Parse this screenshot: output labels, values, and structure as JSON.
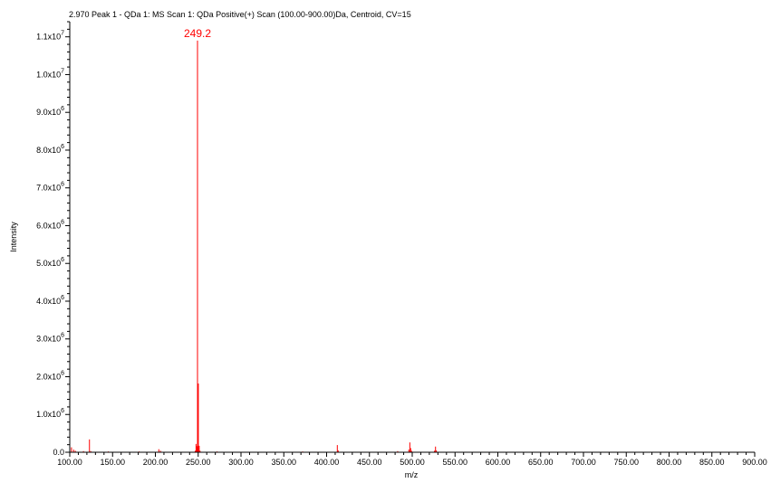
{
  "chart_data": {
    "type": "bar",
    "title": "2.970 Peak 1 - QDa 1: MS Scan 1: QDa Positive(+) Scan (100.00-900.00)Da, Centroid, CV=15",
    "xlabel": "m/z",
    "ylabel": "Intensity",
    "xlim": [
      100,
      900
    ],
    "ylim": [
      0,
      11400000
    ],
    "x_ticks": [
      "100.00",
      "150.00",
      "200.00",
      "250.00",
      "300.00",
      "350.00",
      "400.00",
      "450.00",
      "500.00",
      "550.00",
      "600.00",
      "650.00",
      "700.00",
      "750.00",
      "800.00",
      "850.00",
      "900.00"
    ],
    "y_ticks": [
      {
        "value": 0,
        "mantissa": "0.0",
        "exp": ""
      },
      {
        "value": 1000000,
        "mantissa": "1.0x10",
        "exp": "6"
      },
      {
        "value": 2000000,
        "mantissa": "2.0x10",
        "exp": "6"
      },
      {
        "value": 3000000,
        "mantissa": "3.0x10",
        "exp": "6"
      },
      {
        "value": 4000000,
        "mantissa": "4.0x10",
        "exp": "6"
      },
      {
        "value": 5000000,
        "mantissa": "5.0x10",
        "exp": "6"
      },
      {
        "value": 6000000,
        "mantissa": "6.0x10",
        "exp": "6"
      },
      {
        "value": 7000000,
        "mantissa": "7.0x10",
        "exp": "6"
      },
      {
        "value": 8000000,
        "mantissa": "8.0x10",
        "exp": "6"
      },
      {
        "value": 9000000,
        "mantissa": "9.0x10",
        "exp": "6"
      },
      {
        "value": 10000000,
        "mantissa": "1.0x10",
        "exp": "7"
      },
      {
        "value": 11000000,
        "mantissa": "1.1x10",
        "exp": "7"
      }
    ],
    "peaks": [
      {
        "mz": 102.0,
        "intensity": 130000
      },
      {
        "mz": 104.5,
        "intensity": 70000
      },
      {
        "mz": 106.5,
        "intensity": 40000
      },
      {
        "mz": 116.0,
        "intensity": 30000
      },
      {
        "mz": 123.0,
        "intensity": 340000
      },
      {
        "mz": 124.5,
        "intensity": 30000
      },
      {
        "mz": 145.0,
        "intensity": 20000
      },
      {
        "mz": 181.0,
        "intensity": 20000
      },
      {
        "mz": 204.0,
        "intensity": 80000
      },
      {
        "mz": 206.0,
        "intensity": 40000
      },
      {
        "mz": 246.5,
        "intensity": 40000
      },
      {
        "mz": 247.5,
        "intensity": 220000
      },
      {
        "mz": 248.3,
        "intensity": 160000
      },
      {
        "mz": 249.2,
        "intensity": 10900000
      },
      {
        "mz": 250.2,
        "intensity": 1820000
      },
      {
        "mz": 251.2,
        "intensity": 170000
      },
      {
        "mz": 252.2,
        "intensity": 40000
      },
      {
        "mz": 272.0,
        "intensity": 20000
      },
      {
        "mz": 372.0,
        "intensity": 20000
      },
      {
        "mz": 412.5,
        "intensity": 190000
      },
      {
        "mz": 413.5,
        "intensity": 50000
      },
      {
        "mz": 483.0,
        "intensity": 30000
      },
      {
        "mz": 496.0,
        "intensity": 70000
      },
      {
        "mz": 497.2,
        "intensity": 260000
      },
      {
        "mz": 498.2,
        "intensity": 110000
      },
      {
        "mz": 499.2,
        "intensity": 40000
      },
      {
        "mz": 526.0,
        "intensity": 40000
      },
      {
        "mz": 527.2,
        "intensity": 150000
      },
      {
        "mz": 528.2,
        "intensity": 50000
      }
    ],
    "annotations": [
      {
        "text": "249.2",
        "mz": 249.2,
        "intensity": 10900000
      }
    ],
    "grid": false,
    "colors": {
      "peaks": "#ff0000",
      "axes": "#000000",
      "annotation": "#ff0000"
    }
  }
}
